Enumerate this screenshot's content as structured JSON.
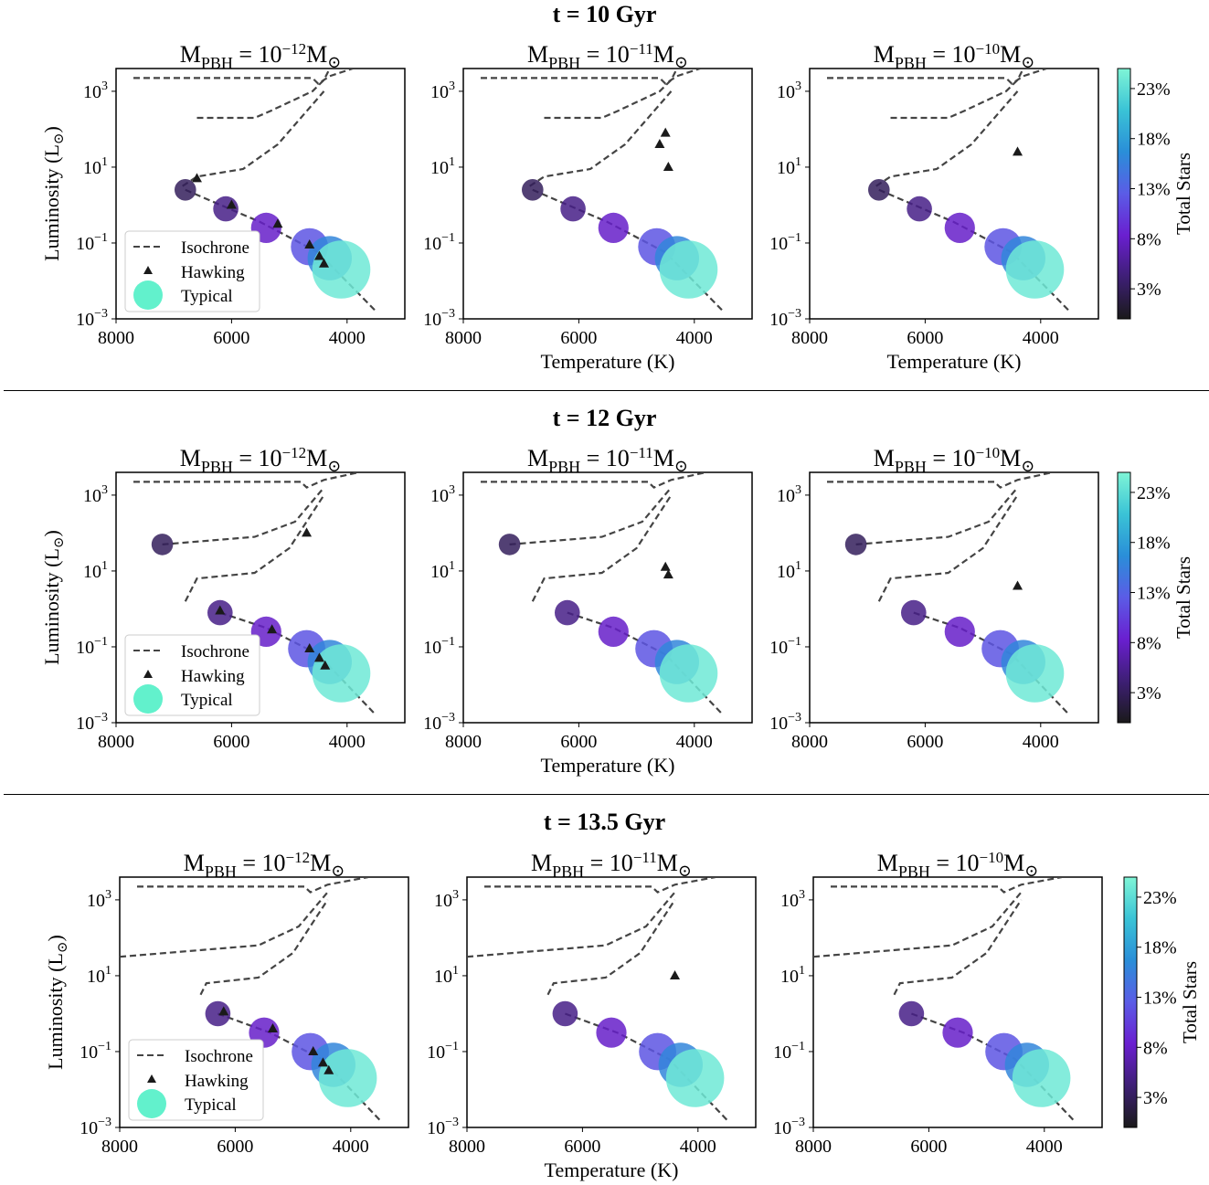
{
  "rows": [
    {
      "title": "t = 10 Gyr"
    },
    {
      "title": "t = 12 Gyr"
    },
    {
      "title": "t = 13.5 Gyr"
    }
  ],
  "panel_titles": [
    "M",
    "PBH",
    " = 10",
    "−12",
    "M",
    "⊙"
  ],
  "panel_exponents": [
    "−12",
    "−11",
    "−10"
  ],
  "axis": {
    "ylabel": "Luminosity (L",
    "ylabel_sun": "⊙",
    "ylabel_close": ")",
    "xlabel": "Temperature (K)",
    "xticks": [
      8000,
      6000,
      4000
    ],
    "yticks": [
      {
        "base": "10",
        "exp": "3"
      },
      {
        "base": "10",
        "exp": "1"
      },
      {
        "base": "10",
        "exp": "−1"
      },
      {
        "base": "10",
        "exp": "−3"
      }
    ]
  },
  "legend": {
    "isochrone": "Isochrone",
    "hawking": "Hawking",
    "typical": "Typical"
  },
  "colorbar": {
    "label": "Total Stars",
    "ticks": [
      "23%",
      "18%",
      "13%",
      "8%",
      "3%"
    ],
    "colors": [
      "#7ff5d6",
      "#3ac3d6",
      "#2a8ed8",
      "#5b5ce6",
      "#6a1fd0",
      "#3e1f75",
      "#1a1a1a"
    ]
  },
  "colors": {
    "isochrone": "#444444",
    "hawking": "#1a1a1a"
  },
  "chart_data": [
    {
      "type": "scatter",
      "row_title": "t = 10 Gyr",
      "xlim": [
        8000,
        3000
      ],
      "ylim_log10": [
        -3,
        3.6
      ],
      "yscale": "log",
      "typical": [
        {
          "T": 6800,
          "logL": 0.4,
          "pct": 3
        },
        {
          "T": 6100,
          "logL": -0.1,
          "pct": 5
        },
        {
          "T": 5400,
          "logL": -0.6,
          "pct": 8
        },
        {
          "T": 4650,
          "logL": -1.1,
          "pct": 12
        },
        {
          "T": 4300,
          "logL": -1.4,
          "pct": 16
        },
        {
          "T": 4100,
          "logL": -1.7,
          "pct": 24
        }
      ],
      "hawking": [
        [
          [
            6600,
            0.7
          ],
          [
            6000,
            0.0
          ],
          [
            5200,
            -0.5
          ],
          [
            4650,
            -1.05
          ],
          [
            4480,
            -1.35
          ],
          [
            4400,
            -1.55
          ]
        ],
        [
          [
            4500,
            1.9
          ],
          [
            4600,
            1.6
          ],
          [
            4450,
            1.0
          ]
        ],
        [
          [
            4400,
            1.4
          ]
        ]
      ],
      "isochrone": [
        [
          [
            7700,
            3.35
          ],
          [
            4600,
            3.35
          ],
          [
            4500,
            3.2
          ],
          [
            4300,
            3.4
          ],
          [
            3900,
            3.6
          ]
        ],
        [
          [
            6600,
            2.3
          ],
          [
            5600,
            2.3
          ],
          [
            5300,
            2.5
          ],
          [
            4600,
            3.0
          ],
          [
            4400,
            3.3
          ],
          [
            4300,
            3.6
          ]
        ],
        [
          [
            6850,
            0.5
          ],
          [
            6600,
            0.75
          ],
          [
            5800,
            0.95
          ],
          [
            5200,
            1.6
          ],
          [
            4400,
            3.0
          ]
        ],
        [
          [
            6800,
            0.4
          ],
          [
            5500,
            -0.45
          ],
          [
            4500,
            -1.25
          ],
          [
            3500,
            -2.8
          ]
        ]
      ]
    },
    {
      "type": "scatter",
      "row_title": "t = 12 Gyr",
      "xlim": [
        8000,
        3000
      ],
      "ylim_log10": [
        -3,
        3.6
      ],
      "yscale": "log",
      "typical": [
        {
          "T": 7200,
          "logL": 1.7,
          "pct": 3
        },
        {
          "T": 6200,
          "logL": -0.1,
          "pct": 5
        },
        {
          "T": 5400,
          "logL": -0.6,
          "pct": 8
        },
        {
          "T": 4700,
          "logL": -1.05,
          "pct": 12
        },
        {
          "T": 4300,
          "logL": -1.4,
          "pct": 16
        },
        {
          "T": 4100,
          "logL": -1.7,
          "pct": 24
        }
      ],
      "hawking": [
        [
          [
            6200,
            -0.05
          ],
          [
            5300,
            -0.55
          ],
          [
            4650,
            -1.05
          ],
          [
            4480,
            -1.3
          ],
          [
            4380,
            -1.5
          ],
          [
            4700,
            2.0
          ]
        ],
        [
          [
            4500,
            1.1
          ],
          [
            4450,
            0.9
          ]
        ],
        [
          [
            4400,
            0.6
          ]
        ]
      ],
      "isochrone": [
        [
          [
            7700,
            3.35
          ],
          [
            4800,
            3.35
          ],
          [
            4700,
            3.2
          ],
          [
            4400,
            3.4
          ],
          [
            3800,
            3.6
          ]
        ],
        [
          [
            7200,
            1.7
          ],
          [
            5600,
            1.9
          ],
          [
            4900,
            2.3
          ],
          [
            4400,
            3.2
          ]
        ],
        [
          [
            6800,
            0.2
          ],
          [
            6600,
            0.8
          ],
          [
            5600,
            0.95
          ],
          [
            5000,
            1.6
          ],
          [
            4400,
            3.0
          ]
        ],
        [
          [
            6200,
            -0.1
          ],
          [
            5400,
            -0.5
          ],
          [
            4500,
            -1.2
          ],
          [
            3500,
            -2.8
          ]
        ]
      ]
    },
    {
      "type": "scatter",
      "row_title": "t = 13.5 Gyr",
      "xlim": [
        8000,
        3000
      ],
      "ylim_log10": [
        -3,
        3.6
      ],
      "yscale": "log",
      "typical": [
        {
          "T": 6300,
          "logL": 0.0,
          "pct": 5
        },
        {
          "T": 5500,
          "logL": -0.5,
          "pct": 8
        },
        {
          "T": 4700,
          "logL": -1.0,
          "pct": 12
        },
        {
          "T": 4300,
          "logL": -1.35,
          "pct": 16
        },
        {
          "T": 4050,
          "logL": -1.7,
          "pct": 24
        }
      ],
      "hawking": [
        [
          [
            6200,
            0.05
          ],
          [
            5350,
            -0.4
          ],
          [
            4650,
            -1.0
          ],
          [
            4480,
            -1.3
          ],
          [
            4380,
            -1.5
          ]
        ],
        [
          [
            4400,
            1.0
          ]
        ],
        []
      ],
      "isochrone": [
        [
          [
            7700,
            3.35
          ],
          [
            4800,
            3.35
          ],
          [
            4700,
            3.2
          ],
          [
            4400,
            3.4
          ],
          [
            3700,
            3.6
          ]
        ],
        [
          [
            8000,
            1.5
          ],
          [
            5600,
            1.8
          ],
          [
            4900,
            2.3
          ],
          [
            4400,
            3.2
          ]
        ],
        [
          [
            6600,
            0.5
          ],
          [
            6500,
            0.8
          ],
          [
            5600,
            0.95
          ],
          [
            5000,
            1.6
          ],
          [
            4400,
            3.0
          ]
        ],
        [
          [
            6300,
            0.0
          ],
          [
            5400,
            -0.5
          ],
          [
            4500,
            -1.2
          ],
          [
            3500,
            -2.8
          ]
        ]
      ]
    }
  ]
}
